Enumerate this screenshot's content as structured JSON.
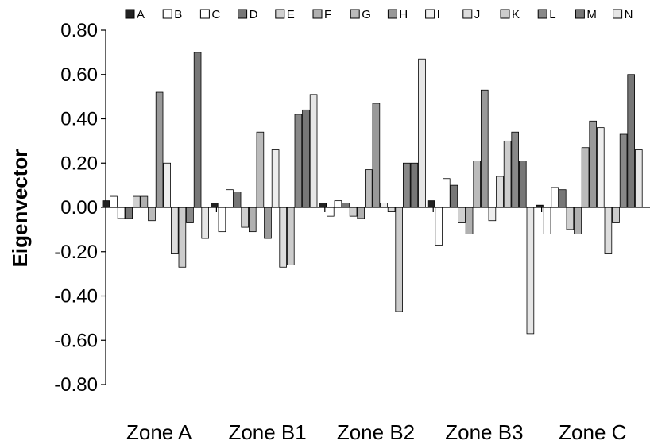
{
  "chart_data": {
    "type": "bar",
    "title": "",
    "xlabel": "",
    "ylabel": "Eigenvector",
    "ylim": [
      -0.8,
      0.8
    ],
    "yticks": [
      "0.80",
      "0.60",
      "0.40",
      "0.20",
      "0.00",
      "-0.20",
      "-0.40",
      "-0.60",
      "-0.80"
    ],
    "categories": [
      "Zone A",
      "Zone B1",
      "Zone B2",
      "Zone B3",
      "Zone C"
    ],
    "legend_position": "top",
    "grid": false,
    "series": [
      {
        "name": "A",
        "color": "#222222",
        "values": [
          0.03,
          0.02,
          0.02,
          0.03,
          0.01
        ]
      },
      {
        "name": "B",
        "color": "#ffffff",
        "values": [
          0.05,
          -0.11,
          -0.04,
          -0.17,
          -0.12
        ]
      },
      {
        "name": "C",
        "color": "#ffffff",
        "values": [
          -0.05,
          0.08,
          0.03,
          0.13,
          0.09
        ]
      },
      {
        "name": "D",
        "color": "#777777",
        "values": [
          -0.05,
          0.07,
          0.02,
          0.1,
          0.08
        ]
      },
      {
        "name": "E",
        "color": "#d0d0d0",
        "values": [
          0.05,
          -0.09,
          -0.04,
          -0.07,
          -0.1
        ]
      },
      {
        "name": "F",
        "color": "#b0b0b0",
        "values": [
          0.05,
          -0.11,
          -0.05,
          -0.12,
          -0.12
        ]
      },
      {
        "name": "G",
        "color": "#bbbbbb",
        "values": [
          -0.06,
          0.34,
          0.17,
          0.21,
          0.27
        ]
      },
      {
        "name": "H",
        "color": "#999999",
        "values": [
          0.52,
          -0.14,
          0.47,
          0.53,
          0.39
        ]
      },
      {
        "name": "I",
        "color": "#eeeeee",
        "values": [
          0.2,
          0.26,
          0.02,
          -0.06,
          0.36
        ]
      },
      {
        "name": "J",
        "color": "#dddddd",
        "values": [
          -0.21,
          -0.27,
          -0.02,
          0.14,
          -0.21
        ]
      },
      {
        "name": "K",
        "color": "#cccccc",
        "values": [
          -0.27,
          -0.26,
          -0.47,
          0.3,
          -0.07
        ]
      },
      {
        "name": "L",
        "color": "#888888",
        "values": [
          -0.07,
          0.42,
          0.2,
          0.34,
          0.33
        ]
      },
      {
        "name": "M",
        "color": "#777777",
        "values": [
          0.7,
          0.44,
          0.2,
          0.21,
          0.6
        ]
      },
      {
        "name": "N",
        "color": "#e6e6e6",
        "values": [
          -0.14,
          0.51,
          0.67,
          -0.57,
          0.26
        ]
      }
    ]
  }
}
